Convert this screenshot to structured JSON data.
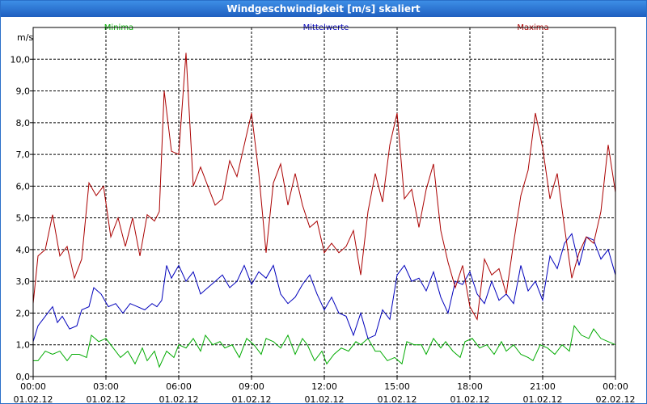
{
  "window": {
    "title": "Windgeschwindigkeit [m/s] skaliert"
  },
  "chart_data": {
    "type": "line",
    "title": "Windgeschwindigkeit [m/s] skaliert",
    "ylabel": "m/s",
    "ylim": [
      0,
      11
    ],
    "y_ticks": [
      "0,0",
      "1,0",
      "2,0",
      "3,0",
      "4,0",
      "5,0",
      "6,0",
      "7,0",
      "8,0",
      "9,0",
      "10,0"
    ],
    "x_ticks": [
      {
        "time": "00:00",
        "date": "01.02.12"
      },
      {
        "time": "03:00",
        "date": "01.02.12"
      },
      {
        "time": "06:00",
        "date": "01.02.12"
      },
      {
        "time": "09:00",
        "date": "01.02.12"
      },
      {
        "time": "12:00",
        "date": "01.02.12"
      },
      {
        "time": "15:00",
        "date": "01.02.12"
      },
      {
        "time": "18:00",
        "date": "01.02.12"
      },
      {
        "time": "21:00",
        "date": "01.02.12"
      },
      {
        "time": "00:00",
        "date": "02.02.12"
      }
    ],
    "x_unit": "hours from 01.02.12 00:00",
    "grid": true,
    "legend_position": "top",
    "series": [
      {
        "name": "Minima",
        "color": "#00aa00",
        "points": [
          [
            0,
            0.5
          ],
          [
            0.2,
            0.5
          ],
          [
            0.5,
            0.8
          ],
          [
            0.8,
            0.7
          ],
          [
            1.1,
            0.8
          ],
          [
            1.4,
            0.5
          ],
          [
            1.6,
            0.7
          ],
          [
            1.9,
            0.7
          ],
          [
            2.2,
            0.6
          ],
          [
            2.4,
            1.3
          ],
          [
            2.7,
            1.1
          ],
          [
            3.0,
            1.2
          ],
          [
            3.3,
            0.9
          ],
          [
            3.6,
            0.6
          ],
          [
            3.9,
            0.8
          ],
          [
            4.2,
            0.4
          ],
          [
            4.5,
            0.9
          ],
          [
            4.7,
            0.5
          ],
          [
            5.0,
            0.8
          ],
          [
            5.2,
            0.3
          ],
          [
            5.5,
            0.8
          ],
          [
            5.8,
            0.6
          ],
          [
            6.0,
            1.0
          ],
          [
            6.3,
            0.9
          ],
          [
            6.6,
            1.2
          ],
          [
            6.9,
            0.8
          ],
          [
            7.1,
            1.3
          ],
          [
            7.4,
            1.0
          ],
          [
            7.7,
            1.1
          ],
          [
            7.9,
            0.9
          ],
          [
            8.2,
            1.0
          ],
          [
            8.5,
            0.6
          ],
          [
            8.8,
            1.2
          ],
          [
            9.1,
            1.0
          ],
          [
            9.4,
            0.7
          ],
          [
            9.6,
            1.2
          ],
          [
            9.9,
            1.1
          ],
          [
            10.2,
            0.9
          ],
          [
            10.5,
            1.3
          ],
          [
            10.8,
            0.7
          ],
          [
            11.1,
            1.2
          ],
          [
            11.3,
            1.0
          ],
          [
            11.6,
            0.5
          ],
          [
            11.9,
            0.8
          ],
          [
            12.1,
            0.4
          ],
          [
            12.4,
            0.7
          ],
          [
            12.7,
            0.9
          ],
          [
            13.0,
            0.8
          ],
          [
            13.3,
            1.1
          ],
          [
            13.5,
            1.0
          ],
          [
            13.8,
            1.2
          ],
          [
            14.1,
            0.8
          ],
          [
            14.3,
            0.8
          ],
          [
            14.6,
            0.5
          ],
          [
            14.9,
            0.6
          ],
          [
            15.2,
            0.4
          ],
          [
            15.4,
            1.1
          ],
          [
            15.7,
            1.0
          ],
          [
            16.0,
            1.0
          ],
          [
            16.2,
            0.7
          ],
          [
            16.5,
            1.2
          ],
          [
            16.8,
            0.9
          ],
          [
            17.0,
            1.1
          ],
          [
            17.3,
            0.8
          ],
          [
            17.6,
            0.6
          ],
          [
            17.8,
            1.1
          ],
          [
            18.1,
            1.2
          ],
          [
            18.4,
            0.9
          ],
          [
            18.7,
            1.0
          ],
          [
            19.0,
            0.7
          ],
          [
            19.3,
            1.1
          ],
          [
            19.5,
            0.8
          ],
          [
            19.8,
            1.0
          ],
          [
            20.1,
            0.7
          ],
          [
            20.4,
            0.6
          ],
          [
            20.6,
            0.5
          ],
          [
            20.9,
            1.0
          ],
          [
            21.2,
            0.9
          ],
          [
            21.5,
            0.7
          ],
          [
            21.8,
            1.0
          ],
          [
            22.1,
            0.8
          ],
          [
            22.3,
            1.6
          ],
          [
            22.6,
            1.3
          ],
          [
            22.9,
            1.2
          ],
          [
            23.1,
            1.5
          ],
          [
            23.4,
            1.2
          ],
          [
            23.7,
            1.1
          ],
          [
            24,
            1.0
          ]
        ]
      },
      {
        "name": "Mittelwerte",
        "color": "#0000bb",
        "points": [
          [
            0,
            1.1
          ],
          [
            0.2,
            1.6
          ],
          [
            0.5,
            1.9
          ],
          [
            0.8,
            2.2
          ],
          [
            1.0,
            1.7
          ],
          [
            1.2,
            1.9
          ],
          [
            1.5,
            1.5
          ],
          [
            1.8,
            1.6
          ],
          [
            2.0,
            2.1
          ],
          [
            2.3,
            2.2
          ],
          [
            2.5,
            2.8
          ],
          [
            2.8,
            2.6
          ],
          [
            3.1,
            2.2
          ],
          [
            3.4,
            2.3
          ],
          [
            3.7,
            2.0
          ],
          [
            4.0,
            2.3
          ],
          [
            4.3,
            2.2
          ],
          [
            4.6,
            2.1
          ],
          [
            4.9,
            2.3
          ],
          [
            5.1,
            2.2
          ],
          [
            5.3,
            2.4
          ],
          [
            5.5,
            3.5
          ],
          [
            5.7,
            3.1
          ],
          [
            6.0,
            3.5
          ],
          [
            6.3,
            3.0
          ],
          [
            6.6,
            3.3
          ],
          [
            6.9,
            2.6
          ],
          [
            7.2,
            2.8
          ],
          [
            7.5,
            3.0
          ],
          [
            7.8,
            3.2
          ],
          [
            8.1,
            2.8
          ],
          [
            8.4,
            3.0
          ],
          [
            8.7,
            3.5
          ],
          [
            9.0,
            2.9
          ],
          [
            9.3,
            3.3
          ],
          [
            9.6,
            3.1
          ],
          [
            9.9,
            3.5
          ],
          [
            10.2,
            2.6
          ],
          [
            10.5,
            2.3
          ],
          [
            10.8,
            2.5
          ],
          [
            11.1,
            2.9
          ],
          [
            11.4,
            3.2
          ],
          [
            11.7,
            2.6
          ],
          [
            12.0,
            2.1
          ],
          [
            12.3,
            2.5
          ],
          [
            12.6,
            2.0
          ],
          [
            12.9,
            1.9
          ],
          [
            13.2,
            1.3
          ],
          [
            13.5,
            2.0
          ],
          [
            13.8,
            1.2
          ],
          [
            14.1,
            1.3
          ],
          [
            14.4,
            2.1
          ],
          [
            14.7,
            1.8
          ],
          [
            15.0,
            3.2
          ],
          [
            15.3,
            3.5
          ],
          [
            15.6,
            3.0
          ],
          [
            15.9,
            3.1
          ],
          [
            16.2,
            2.7
          ],
          [
            16.5,
            3.3
          ],
          [
            16.8,
            2.5
          ],
          [
            17.1,
            2.0
          ],
          [
            17.4,
            3.0
          ],
          [
            17.7,
            2.9
          ],
          [
            18.0,
            3.3
          ],
          [
            18.3,
            2.6
          ],
          [
            18.6,
            2.3
          ],
          [
            18.9,
            3.0
          ],
          [
            19.2,
            2.4
          ],
          [
            19.5,
            2.6
          ],
          [
            19.8,
            2.3
          ],
          [
            20.1,
            3.5
          ],
          [
            20.4,
            2.7
          ],
          [
            20.7,
            3.0
          ],
          [
            21.0,
            2.4
          ],
          [
            21.3,
            3.8
          ],
          [
            21.6,
            3.4
          ],
          [
            21.9,
            4.2
          ],
          [
            22.2,
            4.5
          ],
          [
            22.5,
            3.5
          ],
          [
            22.8,
            4.4
          ],
          [
            23.1,
            4.3
          ],
          [
            23.4,
            3.7
          ],
          [
            23.7,
            4.0
          ],
          [
            24,
            3.2
          ]
        ]
      },
      {
        "name": "Maxima",
        "color": "#aa0000",
        "points": [
          [
            0,
            2.3
          ],
          [
            0.2,
            3.8
          ],
          [
            0.5,
            4.0
          ],
          [
            0.8,
            5.1
          ],
          [
            1.1,
            3.8
          ],
          [
            1.4,
            4.1
          ],
          [
            1.7,
            3.1
          ],
          [
            2.0,
            3.7
          ],
          [
            2.3,
            6.1
          ],
          [
            2.6,
            5.7
          ],
          [
            2.9,
            6.0
          ],
          [
            3.2,
            4.4
          ],
          [
            3.5,
            5.0
          ],
          [
            3.8,
            4.1
          ],
          [
            4.1,
            5.0
          ],
          [
            4.4,
            3.8
          ],
          [
            4.7,
            5.1
          ],
          [
            5.0,
            4.9
          ],
          [
            5.2,
            5.2
          ],
          [
            5.4,
            9.0
          ],
          [
            5.7,
            7.1
          ],
          [
            6.0,
            7.0
          ],
          [
            6.3,
            10.2
          ],
          [
            6.6,
            6.0
          ],
          [
            6.9,
            6.6
          ],
          [
            7.2,
            6.0
          ],
          [
            7.5,
            5.4
          ],
          [
            7.8,
            5.6
          ],
          [
            8.1,
            6.8
          ],
          [
            8.4,
            6.3
          ],
          [
            8.7,
            7.3
          ],
          [
            9.0,
            8.3
          ],
          [
            9.3,
            6.4
          ],
          [
            9.6,
            3.9
          ],
          [
            9.9,
            6.1
          ],
          [
            10.2,
            6.7
          ],
          [
            10.5,
            5.4
          ],
          [
            10.8,
            6.4
          ],
          [
            11.1,
            5.4
          ],
          [
            11.4,
            4.7
          ],
          [
            11.7,
            4.9
          ],
          [
            12.0,
            3.9
          ],
          [
            12.3,
            4.2
          ],
          [
            12.6,
            3.9
          ],
          [
            12.9,
            4.1
          ],
          [
            13.2,
            4.6
          ],
          [
            13.5,
            3.2
          ],
          [
            13.8,
            5.2
          ],
          [
            14.1,
            6.4
          ],
          [
            14.4,
            5.5
          ],
          [
            14.7,
            7.3
          ],
          [
            15.0,
            8.3
          ],
          [
            15.3,
            5.6
          ],
          [
            15.6,
            5.9
          ],
          [
            15.9,
            4.7
          ],
          [
            16.2,
            5.9
          ],
          [
            16.5,
            6.7
          ],
          [
            16.8,
            4.6
          ],
          [
            17.1,
            3.6
          ],
          [
            17.4,
            2.8
          ],
          [
            17.7,
            3.5
          ],
          [
            18.0,
            2.2
          ],
          [
            18.3,
            1.8
          ],
          [
            18.6,
            3.7
          ],
          [
            18.9,
            3.2
          ],
          [
            19.2,
            3.4
          ],
          [
            19.5,
            2.6
          ],
          [
            19.8,
            4.2
          ],
          [
            20.1,
            5.7
          ],
          [
            20.4,
            6.5
          ],
          [
            20.7,
            8.3
          ],
          [
            21.0,
            7.2
          ],
          [
            21.3,
            5.6
          ],
          [
            21.6,
            6.4
          ],
          [
            21.9,
            4.7
          ],
          [
            22.2,
            3.1
          ],
          [
            22.5,
            3.9
          ],
          [
            22.8,
            4.4
          ],
          [
            23.1,
            4.2
          ],
          [
            23.4,
            5.2
          ],
          [
            23.7,
            7.3
          ],
          [
            24,
            5.8
          ]
        ]
      }
    ]
  }
}
